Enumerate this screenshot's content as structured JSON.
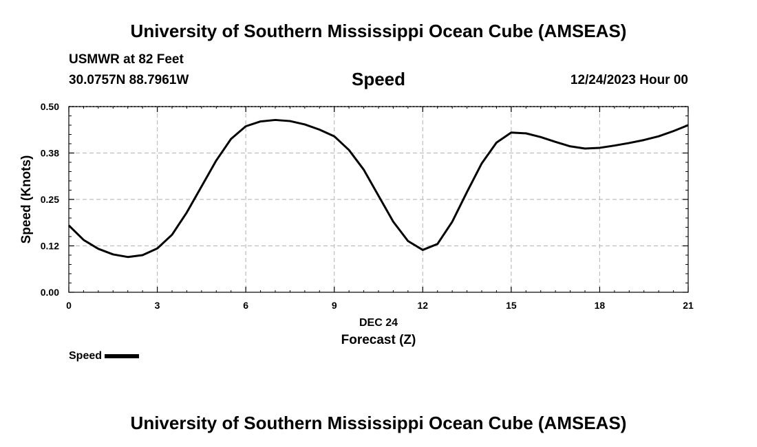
{
  "header": {
    "title_top": "University of Southern Mississippi Ocean Cube (AMSEAS)",
    "station": "USMWR at 82 Feet",
    "coords": "30.0757N  88.7961W",
    "variable": "Speed",
    "datetime": "12/24/2023 Hour 00"
  },
  "footer": {
    "title_bottom": "University of Southern Mississippi Ocean Cube (AMSEAS)"
  },
  "legend": {
    "label": "Speed"
  },
  "colors": {
    "line": "#000000",
    "grid": "#bdbdbd",
    "axis": "#000000"
  },
  "chart_data": {
    "type": "line",
    "title": "Speed",
    "xlabel": "Forecast (Z)",
    "xlabel_date": "DEC 24",
    "ylabel": "Speed (Knots)",
    "xlim": [
      0,
      21
    ],
    "ylim": [
      0,
      0.5
    ],
    "xticks": [
      0,
      3,
      6,
      9,
      12,
      15,
      18,
      21
    ],
    "xtick_labels": [
      "0",
      "3",
      "6",
      "9",
      "12",
      "15",
      "18",
      "21"
    ],
    "yticks": [
      0,
      0.125,
      0.25,
      0.375,
      0.5
    ],
    "ytick_labels": [
      "0.00",
      "0.12",
      "0.25",
      "0.38",
      "0.50"
    ],
    "grid": true,
    "series": [
      {
        "name": "Speed",
        "x": [
          0,
          0.5,
          1,
          1.5,
          2,
          2.5,
          3,
          3.5,
          4,
          4.5,
          5,
          5.5,
          6,
          6.5,
          7,
          7.5,
          8,
          8.5,
          9,
          9.5,
          10,
          10.5,
          11,
          11.5,
          12,
          12.5,
          13,
          13.5,
          14,
          14.5,
          15,
          15.5,
          16,
          16.5,
          17,
          17.5,
          18,
          18.5,
          19,
          19.5,
          20,
          20.5,
          21
        ],
        "values": [
          0.18,
          0.141,
          0.117,
          0.102,
          0.095,
          0.1,
          0.118,
          0.155,
          0.215,
          0.285,
          0.355,
          0.413,
          0.447,
          0.46,
          0.464,
          0.461,
          0.452,
          0.438,
          0.42,
          0.383,
          0.33,
          0.26,
          0.19,
          0.138,
          0.114,
          0.13,
          0.19,
          0.27,
          0.347,
          0.403,
          0.43,
          0.428,
          0.418,
          0.405,
          0.393,
          0.387,
          0.389,
          0.395,
          0.402,
          0.41,
          0.42,
          0.434,
          0.45
        ]
      }
    ]
  }
}
